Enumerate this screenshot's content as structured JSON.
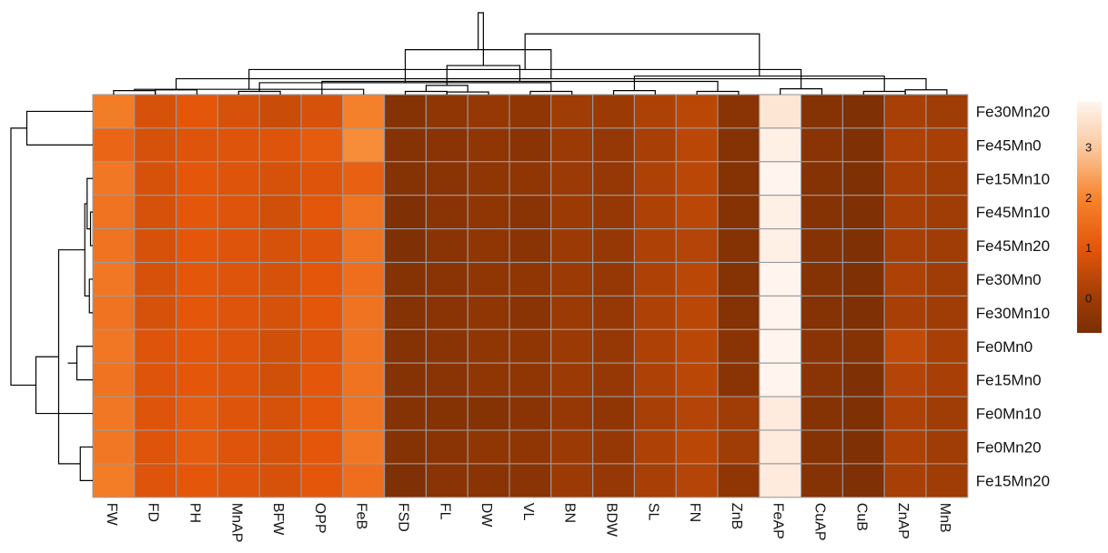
{
  "chart_data": {
    "type": "heatmap",
    "title": "",
    "xlabel": "",
    "ylabel": "",
    "columns": [
      "FW",
      "FD",
      "PH",
      "MnAP",
      "BFW",
      "OPP",
      "FeB",
      "FSD",
      "FL",
      "DW",
      "VL",
      "BN",
      "BDW",
      "SL",
      "FN",
      "ZnB",
      "FeAP",
      "CuAP",
      "CuB",
      "ZnAP",
      "MnB"
    ],
    "rows": [
      "Fe30Mn20",
      "Fe45Mn0",
      "Fe15Mn10",
      "Fe45Mn10",
      "Fe45Mn20",
      "Fe30Mn0",
      "Fe30Mn10",
      "Fe0Mn0",
      "Fe15Mn0",
      "Fe0Mn10",
      "Fe0Mn20",
      "Fe15Mn20"
    ],
    "values": [
      [
        1.8,
        0.8,
        1.0,
        0.8,
        0.6,
        0.8,
        1.9,
        -0.5,
        -0.3,
        -0.2,
        -0.3,
        0.0,
        -0.1,
        0.2,
        0.4,
        -0.4,
        3.6,
        -0.5,
        -0.6,
        0.1,
        0.0
      ],
      [
        1.3,
        0.8,
        0.9,
        0.9,
        0.9,
        1.1,
        2.1,
        -0.5,
        -0.4,
        -0.3,
        -0.4,
        -0.1,
        -0.2,
        0.1,
        0.4,
        -0.5,
        3.8,
        -0.4,
        -0.6,
        0.2,
        0.1
      ],
      [
        1.7,
        0.8,
        1.0,
        0.9,
        0.8,
        0.9,
        1.2,
        -0.5,
        -0.4,
        -0.3,
        -0.3,
        -0.1,
        -0.2,
        0.2,
        0.4,
        -0.5,
        3.9,
        -0.5,
        -0.6,
        0.1,
        0.0
      ],
      [
        1.6,
        0.8,
        1.0,
        0.9,
        0.7,
        1.0,
        1.6,
        -0.6,
        -0.4,
        -0.3,
        -0.4,
        -0.1,
        -0.2,
        0.2,
        0.4,
        -0.5,
        3.8,
        -0.5,
        -0.6,
        0.1,
        0.0
      ],
      [
        1.6,
        0.8,
        1.0,
        0.9,
        0.8,
        0.9,
        1.6,
        -0.6,
        -0.4,
        -0.3,
        -0.4,
        -0.1,
        -0.2,
        0.2,
        0.3,
        -0.5,
        3.8,
        -0.5,
        -0.6,
        0.1,
        0.0
      ],
      [
        1.7,
        0.8,
        1.0,
        0.9,
        0.8,
        1.0,
        1.5,
        -0.5,
        -0.4,
        -0.3,
        -0.3,
        -0.1,
        -0.2,
        0.2,
        0.4,
        -0.5,
        3.9,
        -0.5,
        -0.6,
        0.2,
        0.0
      ],
      [
        1.6,
        0.8,
        1.0,
        0.9,
        0.8,
        1.0,
        1.6,
        -0.5,
        -0.4,
        -0.3,
        -0.4,
        -0.1,
        -0.2,
        0.2,
        0.4,
        -0.5,
        3.9,
        -0.5,
        -0.6,
        0.1,
        0.0
      ],
      [
        1.7,
        0.9,
        1.0,
        0.9,
        0.7,
        0.9,
        1.6,
        -0.5,
        -0.4,
        -0.3,
        -0.3,
        -0.1,
        -0.2,
        0.2,
        0.4,
        -0.4,
        3.9,
        -0.4,
        -0.5,
        0.5,
        0.1
      ],
      [
        1.6,
        0.9,
        1.0,
        0.9,
        0.7,
        1.0,
        1.6,
        -0.5,
        -0.4,
        -0.3,
        -0.3,
        -0.1,
        -0.2,
        0.2,
        0.4,
        -0.4,
        3.9,
        -0.4,
        -0.6,
        0.3,
        0.1
      ],
      [
        1.7,
        0.9,
        1.1,
        0.9,
        0.8,
        1.0,
        1.6,
        -0.5,
        -0.5,
        -0.5,
        -0.4,
        -0.2,
        -0.3,
        0.1,
        0.3,
        0.0,
        3.7,
        -0.5,
        -0.6,
        0.2,
        0.0
      ],
      [
        1.7,
        0.9,
        1.1,
        0.9,
        0.8,
        1.0,
        1.7,
        -0.5,
        -0.4,
        -0.3,
        -0.3,
        -0.1,
        -0.2,
        0.2,
        0.4,
        0.0,
        3.7,
        -0.5,
        -0.6,
        0.2,
        0.0
      ],
      [
        1.8,
        0.9,
        1.0,
        0.9,
        0.8,
        1.0,
        1.5,
        -0.6,
        -0.4,
        -0.4,
        -0.4,
        -0.1,
        -0.2,
        0.1,
        0.3,
        -0.3,
        3.7,
        -0.5,
        -0.6,
        0.1,
        0.0
      ]
    ],
    "color_scale": {
      "min": -0.7,
      "max": 3.9,
      "stops": [
        {
          "value": -0.7,
          "color": "#7a2e05"
        },
        {
          "value": 0.0,
          "color": "#a03c05"
        },
        {
          "value": 1.0,
          "color": "#e4570b"
        },
        {
          "value": 2.0,
          "color": "#f7852e"
        },
        {
          "value": 3.0,
          "color": "#fbc9a0"
        },
        {
          "value": 3.9,
          "color": "#fff5ee"
        }
      ]
    },
    "legend": {
      "position": "right",
      "ticks": [
        0,
        1,
        2,
        3
      ]
    },
    "cell_border_color": "#9a9a9a",
    "dendrogram_color": "#000000",
    "col_dendrogram": {
      "links": [
        [
          0,
          1,
          0.15
        ],
        [
          8,
          9,
          0.1
        ],
        [
          7,
          8,
          0.12
        ],
        [
          14,
          15,
          0.12
        ],
        [
          18,
          19,
          0.12
        ],
        [
          19,
          20,
          0.18
        ],
        [
          10,
          11,
          0.12
        ],
        [
          3,
          4,
          0.12
        ],
        [
          12,
          13,
          0.15
        ],
        [
          1,
          2,
          0.18
        ],
        [
          21,
          6,
          0.2
        ],
        [
          16,
          17,
          0.22
        ],
        [
          22,
          23,
          0.35
        ],
        [
          5,
          24,
          0.5
        ],
        [
          27,
          28,
          0.45
        ],
        [
          26,
          30,
          0.6
        ],
        [
          25,
          29,
          0.7
        ],
        [
          31,
          32,
          0.95
        ],
        [
          33,
          34,
          1.1
        ],
        [
          35,
          36,
          1.7
        ],
        [
          37,
          38,
          2.3
        ],
        [
          39,
          40,
          3.1
        ]
      ],
      "max_height": 3.1
    },
    "row_dendrogram": {
      "links": [
        [
          3,
          4,
          0.1
        ],
        [
          5,
          6,
          0.15
        ],
        [
          2,
          12,
          0.25
        ],
        [
          13,
          14,
          0.35
        ],
        [
          10,
          11,
          0.55
        ],
        [
          7,
          8,
          0.7
        ],
        [
          17,
          18,
          1.1
        ],
        [
          15,
          16,
          1.5
        ],
        [
          9,
          19,
          2.5
        ],
        [
          0,
          1,
          2.9
        ],
        [
          20,
          21,
          3.6
        ]
      ],
      "max_height": 3.6
    }
  }
}
